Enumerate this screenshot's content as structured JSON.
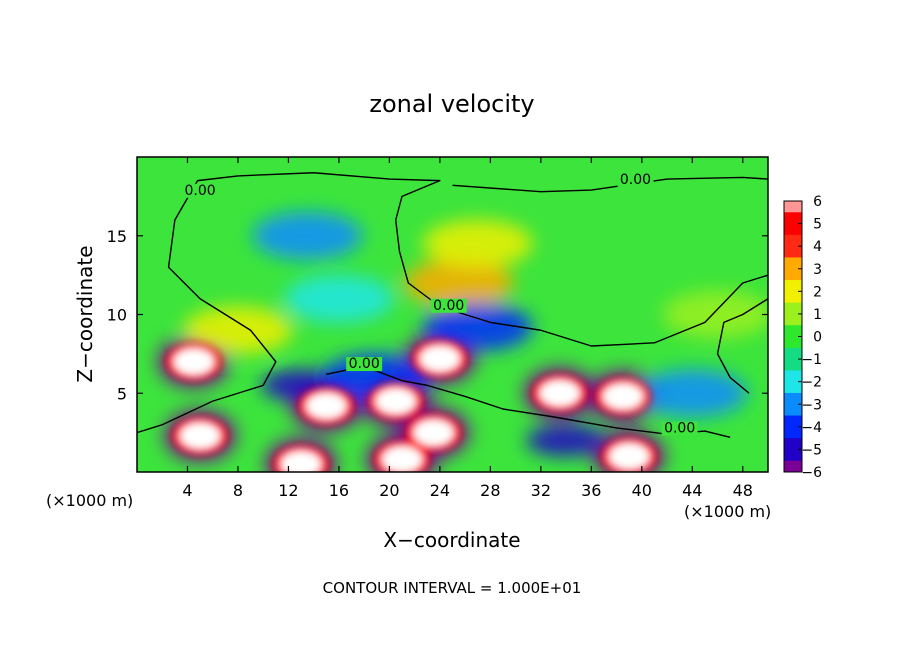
{
  "chart_data": {
    "type": "heatmap",
    "title": "zonal velocity",
    "xlabel": "X−coordinate",
    "ylabel": "Z−coordinate",
    "x_unit_left": "(×1000 m)",
    "x_unit_right": "(×1000 m)",
    "footer": "CONTOUR INTERVAL = 1.000E+01",
    "xlim": [
      0,
      50
    ],
    "ylim": [
      0,
      20
    ],
    "x_ticks": [
      4,
      8,
      12,
      16,
      20,
      24,
      28,
      32,
      36,
      40,
      44,
      48
    ],
    "y_ticks": [
      5,
      10,
      15
    ],
    "colorbar": {
      "min": -6,
      "max": 6,
      "levels": [
        {
          "value": -6,
          "color": "#7a0096"
        },
        {
          "value": -5,
          "color": "#2200c8"
        },
        {
          "value": -4,
          "color": "#0028ff"
        },
        {
          "value": -3,
          "color": "#0a8cff"
        },
        {
          "value": -2,
          "color": "#1ee6e6"
        },
        {
          "value": -1,
          "color": "#14dc82"
        },
        {
          "value": 0,
          "color": "#2ee82e"
        },
        {
          "value": 1,
          "color": "#9bf01e"
        },
        {
          "value": 2,
          "color": "#f0f000"
        },
        {
          "value": 3,
          "color": "#ffaa00"
        },
        {
          "value": 4,
          "color": "#ff2a14"
        },
        {
          "value": 5,
          "color": "#ff0000"
        },
        {
          "value": 6,
          "color": "#ff9696"
        }
      ],
      "tick_labels": [
        "6",
        "5",
        "4",
        "3",
        "2",
        "1",
        "0",
        "−1",
        "−2",
        "−3",
        "−4",
        "−5",
        "−6"
      ]
    },
    "contour_labels": [
      {
        "text": "0.00",
        "x": 5,
        "y": 17.6
      },
      {
        "text": "0.00",
        "x": 39.5,
        "y": 18.3
      },
      {
        "text": "0.00",
        "x": 24.7,
        "y": 10.3
      },
      {
        "text": "0.00",
        "x": 18,
        "y": 6.6
      },
      {
        "text": "0.00",
        "x": 43,
        "y": 2.5
      }
    ],
    "features": [
      {
        "x": 4.5,
        "y": 7.0,
        "value": 6
      },
      {
        "x": 24.0,
        "y": 7.2,
        "value": 6
      },
      {
        "x": 15.0,
        "y": 4.2,
        "value": 6
      },
      {
        "x": 20.5,
        "y": 4.5,
        "value": 6
      },
      {
        "x": 23.5,
        "y": 2.5,
        "value": 6
      },
      {
        "x": 33.5,
        "y": 5.0,
        "value": 6
      },
      {
        "x": 38.5,
        "y": 4.8,
        "value": 6
      },
      {
        "x": 5.0,
        "y": 2.3,
        "value": 6
      },
      {
        "x": 13.0,
        "y": 0.5,
        "value": 6
      },
      {
        "x": 21.0,
        "y": 0.8,
        "value": 6
      },
      {
        "x": 39.0,
        "y": 1.0,
        "value": 6
      },
      {
        "x": 25.5,
        "y": 12.0,
        "value": 3
      },
      {
        "x": 27.0,
        "y": 14.5,
        "value": 2
      },
      {
        "x": 13.5,
        "y": 15.0,
        "value": -3
      },
      {
        "x": 16.0,
        "y": 11.0,
        "value": -2
      },
      {
        "x": 27.0,
        "y": 9.2,
        "value": -4
      },
      {
        "x": 13.0,
        "y": 5.5,
        "value": -5
      },
      {
        "x": 19.0,
        "y": 6.0,
        "value": -4
      },
      {
        "x": 34.0,
        "y": 2.0,
        "value": -5
      },
      {
        "x": 44.0,
        "y": 5.0,
        "value": -3
      },
      {
        "x": 46.0,
        "y": 10.0,
        "value": 1
      },
      {
        "x": 8.0,
        "y": 9.0,
        "value": 2
      }
    ]
  }
}
